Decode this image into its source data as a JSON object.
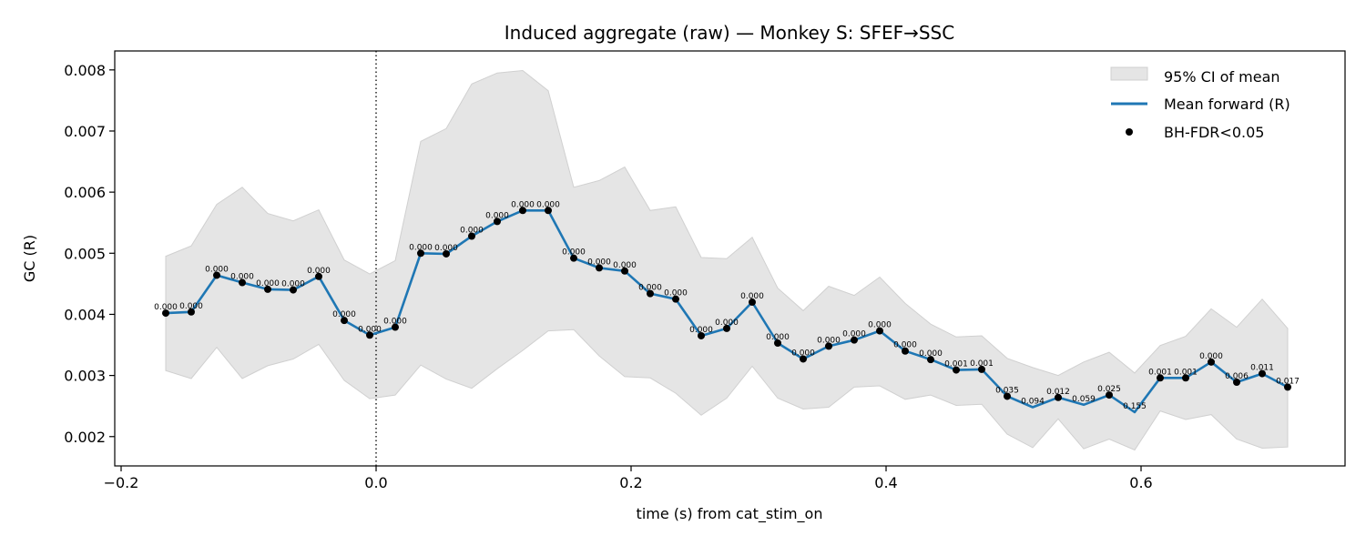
{
  "chart_data": {
    "type": "line",
    "title": "Induced aggregate (raw) — Monkey S: SFEF→SSC",
    "xlabel": "time (s) from cat_stim_on",
    "ylabel": "GC (R)",
    "xlim": [
      -0.205,
      0.76
    ],
    "ylim": [
      0.00152,
      0.00831
    ],
    "xticks": [
      -0.2,
      0.0,
      0.2,
      0.4,
      0.6
    ],
    "xtick_labels": [
      "−0.2",
      "0.0",
      "0.2",
      "0.4",
      "0.6"
    ],
    "yticks": [
      0.002,
      0.003,
      0.004,
      0.005,
      0.006,
      0.007,
      0.008
    ],
    "ytick_labels": [
      "0.002",
      "0.003",
      "0.004",
      "0.005",
      "0.006",
      "0.007",
      "0.008"
    ],
    "grid": false,
    "legend_position": "top-right",
    "legend": [
      "95% CI of mean",
      "Mean forward (R)",
      "BH-FDR<0.05"
    ],
    "vline_x": 0.0,
    "colors": {
      "mean": "#1f77b4",
      "ci_fill": "#e5e5e5",
      "ci_edge": "#d0d0d0",
      "sig": "#000000"
    },
    "x": [
      -0.165,
      -0.145,
      -0.125,
      -0.105,
      -0.085,
      -0.065,
      -0.045,
      -0.025,
      -0.005,
      0.015,
      0.035,
      0.055,
      0.075,
      0.095,
      0.115,
      0.135,
      0.155,
      0.175,
      0.195,
      0.215,
      0.235,
      0.255,
      0.275,
      0.295,
      0.315,
      0.335,
      0.355,
      0.375,
      0.395,
      0.415,
      0.435,
      0.455,
      0.475,
      0.495,
      0.515,
      0.535,
      0.555,
      0.575,
      0.595,
      0.615,
      0.635,
      0.655,
      0.675,
      0.695,
      0.715
    ],
    "series": [
      {
        "name": "Mean forward (R)",
        "values": [
          0.00402,
          0.00404,
          0.00464,
          0.00452,
          0.00441,
          0.0044,
          0.00462,
          0.0039,
          0.00366,
          0.00379,
          0.005,
          0.00499,
          0.00528,
          0.00552,
          0.0057,
          0.0057,
          0.00492,
          0.00476,
          0.00471,
          0.00434,
          0.00425,
          0.00365,
          0.00377,
          0.0042,
          0.00353,
          0.00327,
          0.00348,
          0.00358,
          0.00373,
          0.0034,
          0.00326,
          0.00309,
          0.0031,
          0.00266,
          0.00248,
          0.00264,
          0.00252,
          0.00268,
          0.0024,
          0.00296,
          0.00296,
          0.00322,
          0.00289,
          0.00303,
          0.00281
        ]
      }
    ],
    "ci_upper": [
      0.00495,
      0.00512,
      0.0058,
      0.00608,
      0.00565,
      0.00553,
      0.00571,
      0.00489,
      0.00466,
      0.00488,
      0.00683,
      0.00704,
      0.00777,
      0.00795,
      0.00799,
      0.00766,
      0.00608,
      0.00619,
      0.00641,
      0.0057,
      0.00576,
      0.00493,
      0.00491,
      0.00526,
      0.00443,
      0.00406,
      0.00446,
      0.00431,
      0.00461,
      0.00418,
      0.00384,
      0.00363,
      0.00365,
      0.00328,
      0.00313,
      0.003,
      0.00322,
      0.00338,
      0.00304,
      0.00349,
      0.00364,
      0.00409,
      0.00379,
      0.00425,
      0.00377
    ],
    "ci_lower": [
      0.00308,
      0.00295,
      0.00346,
      0.00295,
      0.00316,
      0.00327,
      0.00351,
      0.00292,
      0.00262,
      0.00268,
      0.00317,
      0.00294,
      0.00279,
      0.00311,
      0.00341,
      0.00373,
      0.00375,
      0.00332,
      0.00298,
      0.00296,
      0.00271,
      0.00235,
      0.00263,
      0.00315,
      0.00263,
      0.00245,
      0.00248,
      0.00281,
      0.00283,
      0.00261,
      0.00268,
      0.00251,
      0.00253,
      0.00204,
      0.00182,
      0.00229,
      0.0018,
      0.00196,
      0.00178,
      0.00242,
      0.00228,
      0.00236,
      0.00196,
      0.00181,
      0.00183
    ],
    "significant": [
      true,
      true,
      true,
      true,
      true,
      true,
      true,
      true,
      true,
      true,
      true,
      true,
      true,
      true,
      true,
      true,
      true,
      true,
      true,
      true,
      true,
      true,
      true,
      true,
      true,
      true,
      true,
      true,
      true,
      true,
      true,
      true,
      true,
      true,
      false,
      true,
      false,
      true,
      false,
      true,
      true,
      true,
      true,
      true,
      true
    ],
    "p_labels": [
      "0.000",
      "0.000",
      "0.000",
      "0.000",
      "0.000",
      "0.000",
      "0.000",
      "0.000",
      "0.000",
      "0.000",
      "0.000",
      "0.000",
      "0.000",
      "0.000",
      "0.000",
      "0.000",
      "0.000",
      "0.000",
      "0.000",
      "0.000",
      "0.000",
      "0.000",
      "0.000",
      "0.000",
      "0.000",
      "0.000",
      "0.000",
      "0.000",
      "0.000",
      "0.000",
      "0.000",
      "0.001",
      "0.001",
      "0.035",
      "0.094",
      "0.012",
      "0.059",
      "0.025",
      "0.155",
      "0.001",
      "0.001",
      "0.000",
      "0.006",
      "0.011",
      "0.017"
    ]
  }
}
